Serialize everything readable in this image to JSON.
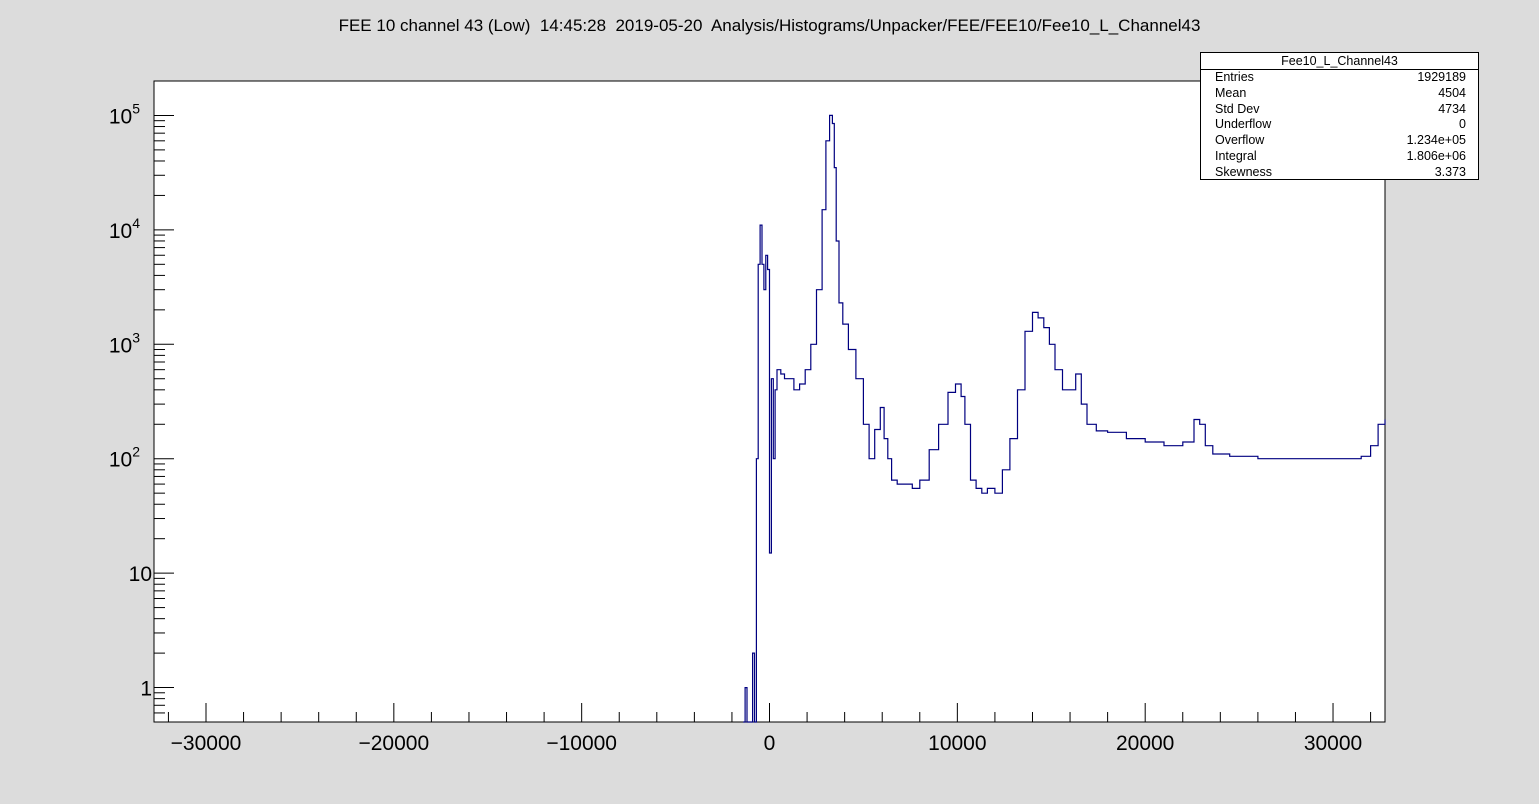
{
  "page": {
    "title": "FEE 10 channel 43 (Low)  14:45:28  2019-05-20  Analysis/Histograms/Unpacker/FEE/FEE10/Fee10_L_Channel43"
  },
  "stats": {
    "name": "Fee10_L_Channel43",
    "rows": [
      {
        "label": "Entries",
        "value": "1929189"
      },
      {
        "label": "Mean",
        "value": "4504"
      },
      {
        "label": "Std Dev",
        "value": "4734"
      },
      {
        "label": "Underflow",
        "value": "0"
      },
      {
        "label": "Overflow",
        "value": "1.234e+05"
      },
      {
        "label": "Integral",
        "value": "1.806e+06"
      },
      {
        "label": "Skewness",
        "value": "3.373"
      }
    ]
  },
  "colors": {
    "background": "#dcdcdc",
    "frame_fill": "#ffffff",
    "histogram_line": "#000080",
    "axis": "#000000"
  },
  "chart_data": {
    "type": "line",
    "title": "FEE 10 channel 43 (Low)  14:45:28  2019-05-20  Analysis/Histograms/Unpacker/FEE/FEE10/Fee10_L_Channel43",
    "xlabel": "",
    "ylabel": "",
    "xlim": [
      -32768,
      32767
    ],
    "ylim": [
      0.5,
      200000
    ],
    "y_scale": "log",
    "grid": false,
    "legend": "none",
    "x_ticks": [
      -30000,
      -20000,
      -10000,
      0,
      10000,
      20000,
      30000
    ],
    "x_tick_labels": [
      "−30000",
      "−20000",
      "−10000",
      "0",
      "10000",
      "20000",
      "30000"
    ],
    "y_ticks": [
      {
        "value": 1,
        "base": "1",
        "exp": ""
      },
      {
        "value": 10,
        "base": "10",
        "exp": ""
      },
      {
        "value": 100,
        "base": "10",
        "exp": "2"
      },
      {
        "value": 1000,
        "base": "10",
        "exp": "3"
      },
      {
        "value": 10000,
        "base": "10",
        "exp": "4"
      },
      {
        "value": 100000,
        "base": "10",
        "exp": "5"
      }
    ],
    "series": [
      {
        "x": [
          -1400,
          -1300,
          -1200,
          -1100,
          -1000,
          -900,
          -800,
          -700,
          -600,
          -500,
          -400,
          -300,
          -200,
          -100,
          0,
          100,
          200,
          300,
          400,
          600,
          800,
          1000,
          1300,
          1600,
          1900,
          2200,
          2500,
          2800,
          3000,
          3200,
          3350,
          3450,
          3550,
          3700,
          3900,
          4200,
          4600,
          5000,
          5300,
          5600,
          5900,
          6100,
          6300,
          6500,
          6800,
          7200,
          7600,
          8000,
          8500,
          9000,
          9500,
          9900,
          10200,
          10400,
          10700,
          11000,
          11300,
          11600,
          12000,
          12400,
          12800,
          13200,
          13600,
          14000,
          14300,
          14600,
          14900,
          15200,
          15600,
          16000,
          16300,
          16600,
          16900,
          17400,
          18000,
          19000,
          20000,
          21000,
          22000,
          22600,
          22900,
          23200,
          23600,
          24500,
          26000,
          28000,
          30000,
          31000,
          31500,
          32000,
          32400,
          32767
        ],
        "y": [
          0.5,
          1,
          0.5,
          0.5,
          0.5,
          2,
          0.5,
          100,
          5000,
          11000,
          5000,
          3000,
          6000,
          4500,
          15,
          500,
          100,
          400,
          600,
          550,
          500,
          500,
          400,
          450,
          600,
          1000,
          3000,
          15000,
          60000,
          100000,
          85000,
          35000,
          8000,
          2300,
          1500,
          900,
          500,
          200,
          100,
          180,
          280,
          150,
          100,
          65,
          60,
          60,
          55,
          65,
          120,
          200,
          380,
          450,
          350,
          200,
          65,
          55,
          50,
          55,
          50,
          80,
          150,
          400,
          1300,
          1900,
          1700,
          1400,
          1000,
          600,
          400,
          400,
          550,
          300,
          200,
          175,
          170,
          150,
          140,
          130,
          140,
          220,
          200,
          130,
          110,
          105,
          100,
          100,
          100,
          100,
          105,
          130,
          200,
          220
        ]
      }
    ]
  }
}
